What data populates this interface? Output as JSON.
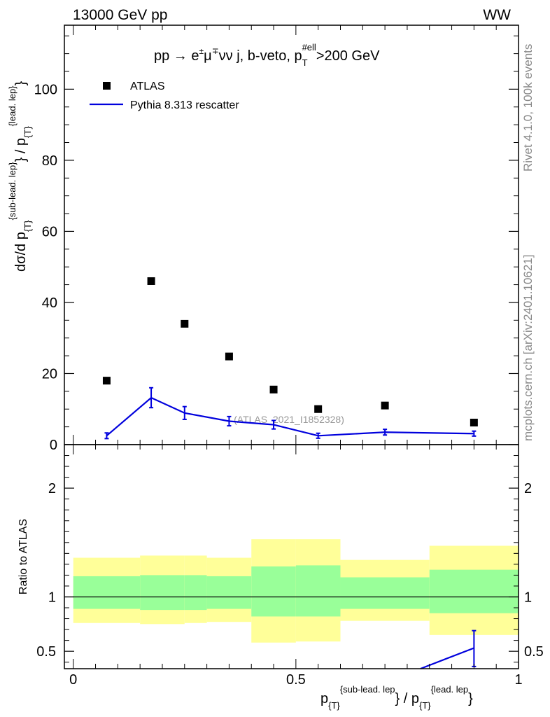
{
  "header": {
    "left": "13000 GeV pp",
    "right": "WW"
  },
  "side_labels": {
    "rivet": "Rivet 4.1.0,  100k events",
    "mcplots": "mcplots.cern.ch [arXiv:2401.10621]"
  },
  "colors": {
    "mc": "#0000dd",
    "data": "#000000",
    "band_outer": "#ffff99",
    "band_inner": "#99ff99",
    "watermark": "#999999"
  },
  "chart_data": [
    {
      "type": "scatter",
      "panel": "main",
      "title_parts": {
        "pre": "pp  →  e",
        "pm": "±",
        "mu": "μ",
        "mp": "∓",
        "mid": "νν j, b-veto, p",
        "sub": "T",
        "sup": "#ell",
        "post": ">200 GeV"
      },
      "ylabel_parts": {
        "a": "dσ/d p",
        "a_sub": "{T}",
        "a_sup": "{sub-lead. lep}",
        "b": "} / p",
        "b_sub": "{T}",
        "b_sup": "{lead. lep}",
        "c": "}"
      },
      "ylim": [
        0,
        118
      ],
      "xlim": [
        -0.02,
        1.0
      ],
      "yticks": [
        {
          "v": 0,
          "label": "0"
        },
        {
          "v": 20,
          "label": "20"
        },
        {
          "v": 40,
          "label": "40"
        },
        {
          "v": 60,
          "label": "60"
        },
        {
          "v": 80,
          "label": "80"
        },
        {
          "v": 100,
          "label": "100"
        }
      ],
      "watermark": "(ATLAS_2021_I1852328)",
      "legend": [
        {
          "name": "ATLAS",
          "marker": "square"
        },
        {
          "name": "Pythia 8.313 rescatter",
          "marker": "line"
        }
      ],
      "series": [
        {
          "name": "ATLAS",
          "x": [
            0.075,
            0.175,
            0.25,
            0.35,
            0.45,
            0.55,
            0.7,
            0.9
          ],
          "y": [
            18.0,
            46.0,
            34.0,
            24.8,
            15.5,
            10.0,
            11.0,
            6.2
          ]
        },
        {
          "name": "Pythia 8.313 rescatter",
          "x": [
            0.075,
            0.175,
            0.25,
            0.35,
            0.45,
            0.55,
            0.7,
            0.9
          ],
          "y": [
            2.5,
            13.2,
            8.9,
            6.6,
            5.6,
            2.5,
            3.5,
            3.1
          ],
          "yerr": [
            0.8,
            2.8,
            1.8,
            1.3,
            1.2,
            0.7,
            0.8,
            0.7
          ]
        }
      ]
    },
    {
      "type": "area",
      "panel": "ratio",
      "ylabel": "Ratio to ATLAS",
      "ylim": [
        0.34,
        2.4
      ],
      "xlim": [
        -0.02,
        1.0
      ],
      "reference": 1.0,
      "yticks_left": [
        {
          "v": 0.5,
          "label": "0.5"
        },
        {
          "v": 1,
          "label": "1"
        },
        {
          "v": 2,
          "label": "2"
        }
      ],
      "yticks_right": [
        {
          "v": 0.5,
          "label": "0.5"
        },
        {
          "v": 1,
          "label": "1"
        },
        {
          "v": 2,
          "label": "2"
        }
      ],
      "xticks": [
        {
          "v": 0,
          "label": "0"
        },
        {
          "v": 0.5,
          "label": "0.5"
        },
        {
          "v": 1,
          "label": "1"
        }
      ],
      "xlabel_parts": {
        "a": "p",
        "a_sub": "{T}",
        "a_sup": "{sub-lead. lep",
        "b": "} / p",
        "b_sub": "{T}",
        "b_sup": "{lead. lep",
        "c": "}"
      },
      "bands": [
        {
          "x0": 0.0,
          "x1": 0.15,
          "outer": [
            0.76,
            1.36
          ],
          "inner": [
            0.89,
            1.19
          ]
        },
        {
          "x0": 0.15,
          "x1": 0.25,
          "outer": [
            0.75,
            1.38
          ],
          "inner": [
            0.88,
            1.2
          ]
        },
        {
          "x0": 0.25,
          "x1": 0.3,
          "outer": [
            0.76,
            1.38
          ],
          "inner": [
            0.88,
            1.2
          ]
        },
        {
          "x0": 0.3,
          "x1": 0.4,
          "outer": [
            0.77,
            1.36
          ],
          "inner": [
            0.89,
            1.19
          ]
        },
        {
          "x0": 0.4,
          "x1": 0.5,
          "outer": [
            0.58,
            1.53
          ],
          "inner": [
            0.82,
            1.28
          ]
        },
        {
          "x0": 0.5,
          "x1": 0.6,
          "outer": [
            0.59,
            1.53
          ],
          "inner": [
            0.82,
            1.29
          ]
        },
        {
          "x0": 0.6,
          "x1": 0.8,
          "outer": [
            0.78,
            1.34
          ],
          "inner": [
            0.89,
            1.18
          ]
        },
        {
          "x0": 0.8,
          "x1": 1.0,
          "outer": [
            0.65,
            1.47
          ],
          "inner": [
            0.85,
            1.25
          ]
        }
      ],
      "series": [
        {
          "name": "Pythia 8.313 rescatter",
          "x": [
            0.78,
            0.9
          ],
          "y": [
            0.34,
            0.53
          ],
          "err_point": {
            "x": 0.9,
            "y": 0.53,
            "lo": 0.36,
            "hi": 0.69
          }
        }
      ]
    }
  ]
}
